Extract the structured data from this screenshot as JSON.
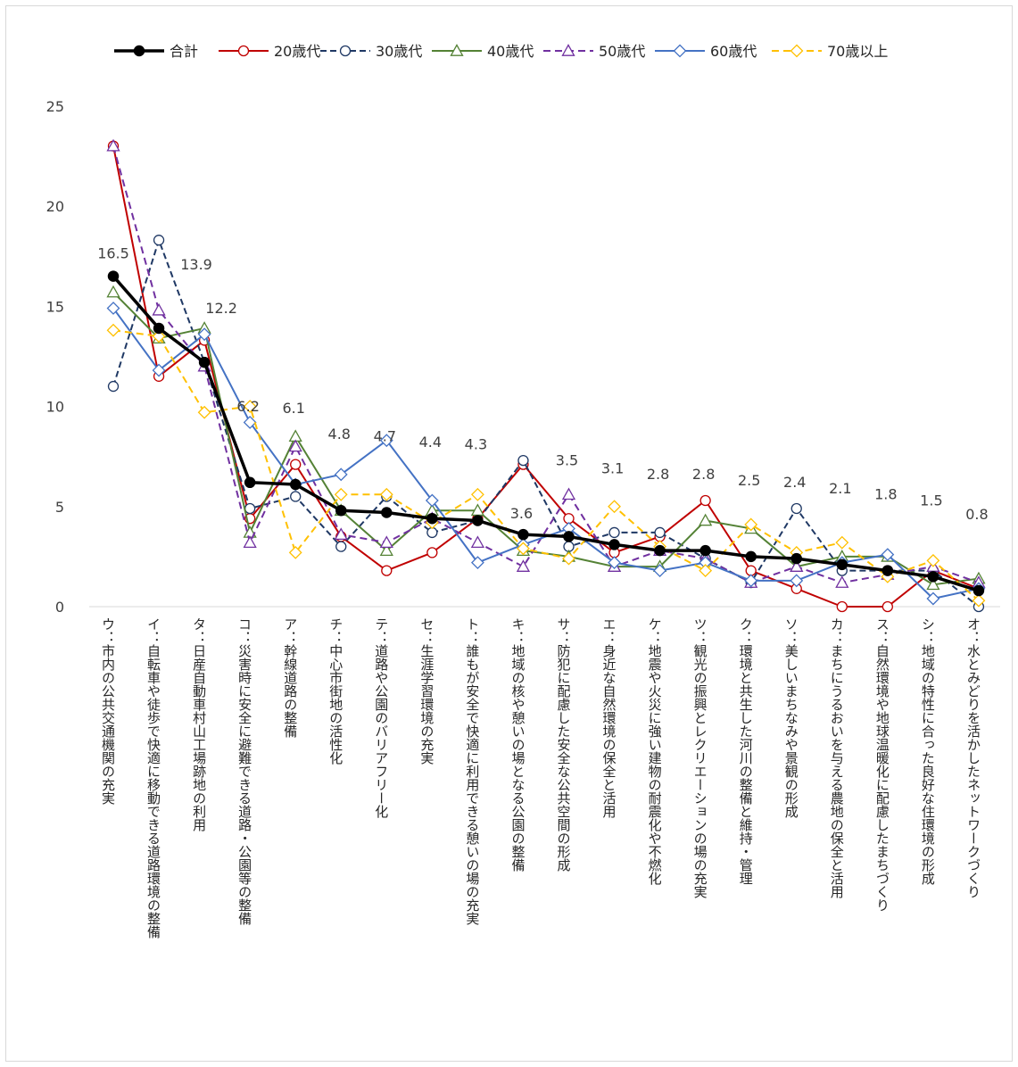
{
  "chart_data": {
    "type": "line",
    "ylim": [
      0,
      25
    ],
    "yticks": [
      "0",
      "5",
      "10",
      "15",
      "20",
      "25"
    ],
    "categories": [
      "ウ：市内の公共交通機関の充実",
      "イ：自転車や徒歩で快適に移動できる道路環境の整備",
      "タ：日産自動車村山工場跡地の利用",
      "コ：災害時に安全に避難できる道路・公園等の整備",
      "ア：幹線道路の整備",
      "チ：中心市街地の活性化",
      "テ：道路や公園のバリアフリー化",
      "セ：生涯学習環境の充実",
      "ト：誰もが安全で快適に利用できる憩いの場の充実",
      "キ：地域の核や憩いの場となる公園の整備",
      "サ：防犯に配慮した安全な公共空間の形成",
      "エ：身近な自然環境の保全と活用",
      "ケ：地震や火災に強い建物の耐震化や不燃化",
      "ツ：観光の振興とレクリエーションの場の充実",
      "ク：環境と共生した河川の整備と維持・管理",
      "ソ：美しいまちなみや景観の形成",
      "カ：まちにうるおいを与える農地の保全と活用",
      "ス：自然環境や地球温暖化に配慮したまちづくり",
      "シ：地域の特性に合った良好な住環境の形成",
      "オ：水とみどりを活かしたネットワークづくり"
    ],
    "data_labels": [
      "16.5",
      "13.9",
      "12.2",
      "6.2",
      "6.1",
      "4.8",
      "4.7",
      "4.4",
      "4.3",
      "3.6",
      "3.5",
      "3.1",
      "2.8",
      "2.8",
      "2.5",
      "2.4",
      "2.1",
      "1.8",
      "1.5",
      "0.8"
    ],
    "series": [
      {
        "name": "合計",
        "color": "#000000",
        "marker": "circle-filled",
        "dash": "solid",
        "values": [
          16.5,
          13.9,
          12.2,
          6.2,
          6.1,
          4.8,
          4.7,
          4.4,
          4.3,
          3.6,
          3.5,
          3.1,
          2.8,
          2.8,
          2.5,
          2.4,
          2.1,
          1.8,
          1.5,
          0.8
        ]
      },
      {
        "name": "20歳代",
        "color": "#c00000",
        "marker": "circle",
        "dash": "solid",
        "values": [
          23.0,
          11.5,
          13.3,
          4.4,
          7.1,
          3.5,
          1.8,
          2.7,
          4.4,
          7.1,
          4.4,
          2.7,
          3.5,
          5.3,
          1.8,
          0.9,
          0.0,
          0.0,
          1.8,
          0.9
        ]
      },
      {
        "name": "30歳代",
        "color": "#1f3864",
        "marker": "circle",
        "dash": "dash",
        "values": [
          11.0,
          18.3,
          12.2,
          4.9,
          5.5,
          3.0,
          5.5,
          3.7,
          4.3,
          7.3,
          3.0,
          3.7,
          3.7,
          2.4,
          1.2,
          4.9,
          1.8,
          1.8,
          1.8,
          0.0
        ]
      },
      {
        "name": "40歳代",
        "color": "#548235",
        "marker": "triangle",
        "dash": "solid",
        "values": [
          15.7,
          13.4,
          13.9,
          3.7,
          8.5,
          4.8,
          2.8,
          4.8,
          4.8,
          2.8,
          2.5,
          2.0,
          2.0,
          4.3,
          3.9,
          2.0,
          2.5,
          2.5,
          1.1,
          1.4
        ]
      },
      {
        "name": "50歳代",
        "color": "#7030a0",
        "marker": "triangle",
        "dash": "dash",
        "values": [
          23.0,
          14.8,
          12.0,
          3.2,
          8.0,
          3.6,
          3.2,
          4.4,
          3.2,
          2.0,
          5.6,
          2.0,
          2.8,
          2.4,
          1.2,
          2.0,
          1.2,
          1.6,
          2.0,
          1.2
        ]
      },
      {
        "name": "60歳代",
        "color": "#4472c4",
        "marker": "diamond",
        "dash": "solid",
        "values": [
          14.9,
          11.8,
          13.6,
          9.2,
          6.1,
          6.6,
          8.3,
          5.3,
          2.2,
          3.1,
          3.9,
          2.2,
          1.8,
          2.2,
          1.3,
          1.3,
          2.2,
          2.6,
          0.4,
          0.9
        ]
      },
      {
        "name": "70歳以上",
        "color": "#ffc000",
        "marker": "diamond",
        "dash": "dash",
        "values": [
          13.8,
          13.5,
          9.7,
          10.0,
          2.7,
          5.6,
          5.6,
          4.2,
          5.6,
          2.9,
          2.4,
          5.0,
          3.0,
          1.8,
          4.1,
          2.7,
          3.2,
          1.5,
          2.3,
          0.3
        ]
      }
    ],
    "legend_position": "top",
    "grid": false
  }
}
